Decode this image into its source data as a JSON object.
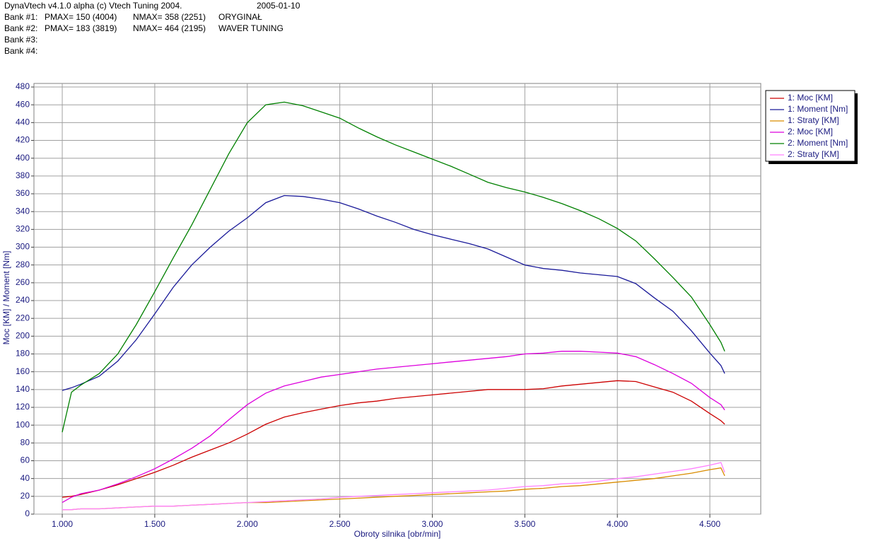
{
  "header": {
    "title": "DynaVtech v4.1.0 alpha (c) Vtech Tuning 2004.",
    "date": "2005-01-10"
  },
  "banks": [
    {
      "label": "Bank #1:",
      "pmax": "PMAX= 150 (4004)",
      "nmax": "NMAX= 358 (2251)",
      "name": "ORYGINAŁ"
    },
    {
      "label": "Bank #2:",
      "pmax": "PMAX= 183 (3819)",
      "nmax": "NMAX= 464 (2195)",
      "name": "WAVER TUNING"
    },
    {
      "label": "Bank #3:"
    },
    {
      "label": "Bank #4:"
    }
  ],
  "chart_data": {
    "type": "line",
    "x_label": "Obroty silnika [obr/min]",
    "y_label": "Moc [KM] / Moment [Nm]",
    "x": [
      1000,
      1050,
      1100,
      1200,
      1300,
      1400,
      1500,
      1600,
      1700,
      1800,
      1900,
      2000,
      2100,
      2200,
      2300,
      2400,
      2500,
      2600,
      2700,
      2800,
      2900,
      3000,
      3100,
      3200,
      3300,
      3400,
      3500,
      3600,
      3700,
      3800,
      3900,
      4000,
      4100,
      4200,
      4300,
      4400,
      4500,
      4560,
      4580
    ],
    "series": [
      {
        "name": "1: Moc [KM]",
        "color": "#cc0000",
        "values": [
          19,
          20,
          22,
          27,
          33,
          40,
          47,
          55,
          64,
          72,
          80,
          90,
          101,
          109,
          114,
          118,
          122,
          125,
          127,
          130,
          132,
          134,
          136,
          138,
          140,
          140,
          140,
          141,
          144,
          146,
          148,
          150,
          149,
          143,
          137,
          127,
          113,
          105,
          101
        ]
      },
      {
        "name": "1: Moment [Nm]",
        "color": "#1a1a99",
        "values": [
          139,
          142,
          146,
          155,
          172,
          196,
          225,
          255,
          280,
          300,
          318,
          333,
          350,
          358,
          357,
          354,
          350,
          343,
          335,
          328,
          320,
          314,
          309,
          304,
          298,
          289,
          280,
          276,
          274,
          271,
          269,
          267,
          259,
          243,
          228,
          206,
          181,
          167,
          158
        ]
      },
      {
        "name": "1: Straty [KM]",
        "color": "#d98c00",
        "values": [
          5,
          5,
          6,
          6,
          7,
          8,
          9,
          9,
          10,
          11,
          12,
          13,
          13,
          14,
          15,
          16,
          17,
          18,
          19,
          20,
          21,
          22,
          23,
          24,
          25,
          26,
          28,
          29,
          31,
          32,
          34,
          36,
          38,
          40,
          43,
          46,
          50,
          52,
          43
        ]
      },
      {
        "name": "2: Moc [KM]",
        "color": "#dd00dd",
        "values": [
          13,
          19,
          23,
          27,
          34,
          42,
          51,
          62,
          74,
          88,
          106,
          123,
          136,
          144,
          149,
          154,
          157,
          160,
          163,
          165,
          167,
          169,
          171,
          173,
          175,
          177,
          180,
          181,
          183,
          183,
          182,
          181,
          177,
          168,
          158,
          147,
          131,
          123,
          117
        ]
      },
      {
        "name": "2: Moment [Nm]",
        "color": "#008000",
        "values": [
          92,
          137,
          145,
          158,
          180,
          213,
          250,
          288,
          325,
          365,
          405,
          440,
          460,
          463,
          459,
          452,
          445,
          434,
          424,
          415,
          407,
          399,
          391,
          382,
          373,
          367,
          362,
          356,
          349,
          341,
          332,
          321,
          307,
          287,
          266,
          244,
          213,
          193,
          183
        ]
      },
      {
        "name": "2: Straty [KM]",
        "color": "#ff80ff",
        "values": [
          5,
          5,
          6,
          6,
          7,
          8,
          9,
          9,
          10,
          11,
          12,
          13,
          14,
          15,
          16,
          17,
          19,
          20,
          21,
          22,
          23,
          24,
          25,
          26,
          27,
          29,
          31,
          32,
          34,
          35,
          37,
          40,
          42,
          45,
          48,
          51,
          55,
          58,
          47
        ]
      }
    ],
    "xlim": [
      847,
      4775
    ],
    "ylim": [
      0,
      484
    ],
    "xticks": [
      {
        "value": 1000,
        "label": "1.000"
      },
      {
        "value": 1500,
        "label": "1.500"
      },
      {
        "value": 2000,
        "label": "2.000"
      },
      {
        "value": 2500,
        "label": "2.500"
      },
      {
        "value": 3000,
        "label": "3.000"
      },
      {
        "value": 3500,
        "label": "3.500"
      },
      {
        "value": 4000,
        "label": "4.000"
      },
      {
        "value": 4500,
        "label": "4.500"
      }
    ],
    "yticks": [
      0,
      20,
      40,
      60,
      80,
      100,
      120,
      140,
      160,
      180,
      200,
      220,
      240,
      260,
      280,
      300,
      320,
      340,
      360,
      380,
      400,
      420,
      440,
      460,
      480
    ],
    "grid": true,
    "legend": "right"
  }
}
